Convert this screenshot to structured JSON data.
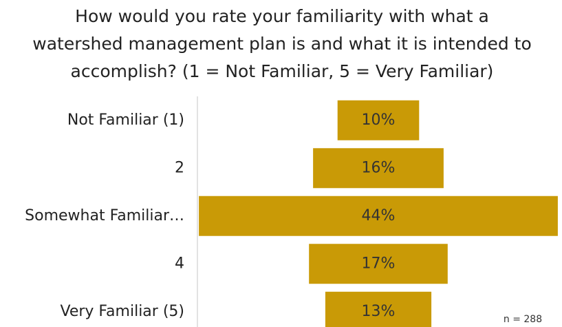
{
  "chart_data": {
    "type": "funnel",
    "title": "How would you rate your familiarity with what a watershed management plan is and what it is intended to accomplish? (1 = Not Familiar, 5 = Very Familiar)",
    "categories": [
      "Not Familiar (1)",
      "2",
      "Somewhat Familiar…",
      "4",
      "Very Familiar (5)"
    ],
    "values": [
      10,
      16,
      44,
      17,
      13
    ],
    "value_labels": [
      "10%",
      "16%",
      "44%",
      "17%",
      "13%"
    ],
    "color": "#c99a06",
    "annotation": "n = 288"
  }
}
